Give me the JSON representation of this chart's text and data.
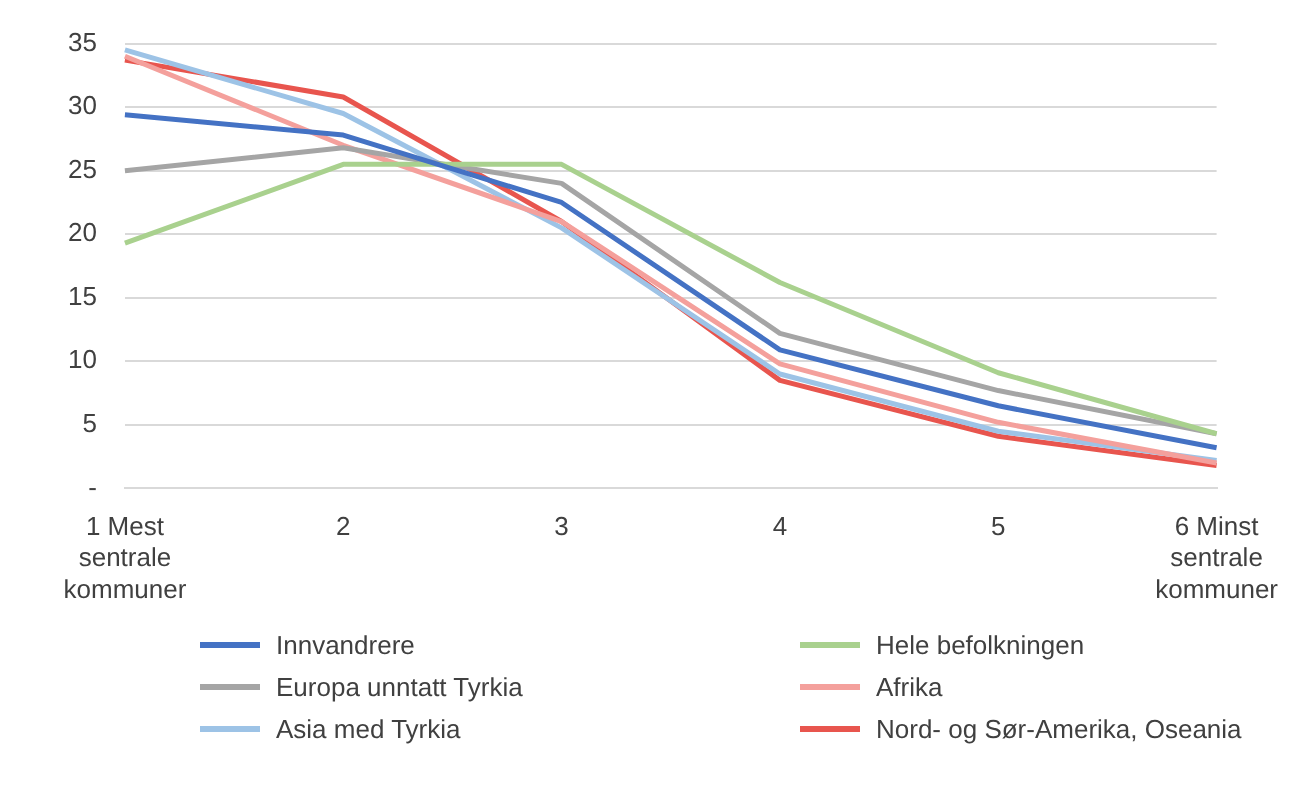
{
  "chart_data": {
    "type": "line",
    "categories": [
      "1 Mest sentrale kommuner",
      "2",
      "3",
      "4",
      "5",
      "6 Minst sentrale kommuner"
    ],
    "series": [
      {
        "name": "Innvandrere",
        "color": "#4472c4",
        "values": [
          29.4,
          27.8,
          22.5,
          10.9,
          6.5,
          3.2
        ]
      },
      {
        "name": "Hele befolkningen",
        "color": "#a9d18e",
        "values": [
          19.3,
          25.5,
          25.5,
          16.2,
          9.1,
          4.3
        ]
      },
      {
        "name": "Europa unntatt Tyrkia",
        "color": "#a5a5a5",
        "values": [
          25,
          26.8,
          24,
          12.2,
          7.7,
          4.3
        ]
      },
      {
        "name": "Afrika",
        "color": "#f4a09c",
        "values": [
          34,
          27,
          21,
          9.8,
          5.2,
          2
        ]
      },
      {
        "name": "Asia med Tyrkia",
        "color": "#9dc3e6",
        "values": [
          34.5,
          29.5,
          20.5,
          9,
          4.5,
          2.2
        ]
      },
      {
        "name": "Nord- og Sør-Amerika, Oseania",
        "color": "#e8554e",
        "values": [
          33.7,
          30.8,
          21,
          8.5,
          4.1,
          1.8
        ]
      }
    ],
    "ylim": [
      0,
      35
    ],
    "yticks": [
      {
        "value": 0,
        "label": "-"
      },
      5,
      10,
      15,
      20,
      25,
      30,
      35
    ],
    "grid": "y",
    "legend": "bottom",
    "marker": "none",
    "line_style": "solid"
  }
}
